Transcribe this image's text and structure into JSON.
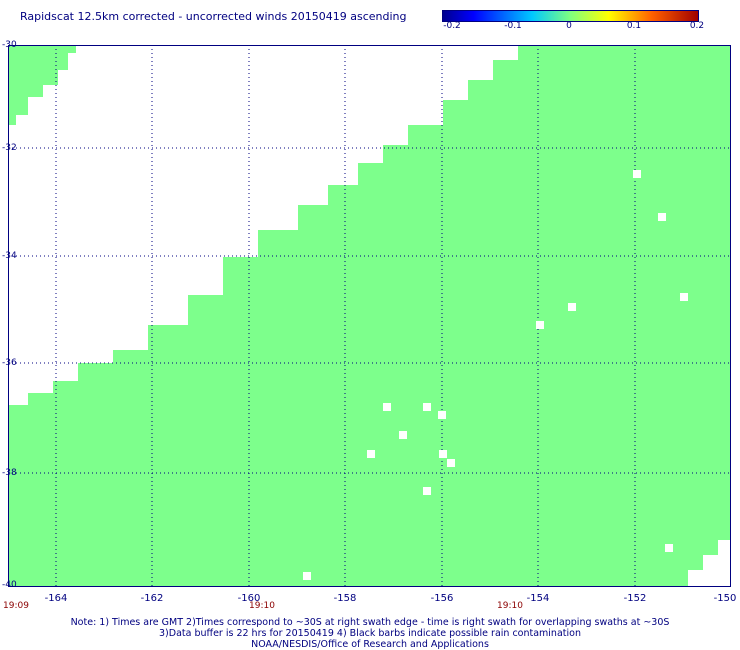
{
  "title": "Rapidscat 12.5km corrected - uncorrected winds 20150419 ascending",
  "colorbar": {
    "ticks": [
      "-0.2",
      "-0.1",
      "0",
      "0.1",
      "0.2"
    ]
  },
  "map": {
    "fill_color": "#7dff8c",
    "lon_range": [
      -165,
      -150
    ],
    "lat_range": [
      -40,
      -30
    ],
    "lon_ticks": [
      "-164",
      "-162",
      "-160",
      "-158",
      "-156",
      "-154",
      "-152",
      "-150"
    ],
    "lat_ticks": [
      "-30",
      "-32",
      "-34",
      "-36",
      "-38",
      "-40"
    ],
    "time_labels": [
      "19:09",
      "19:10",
      "19:10"
    ]
  },
  "notes": [
    "Note: 1) Times are GMT 2)Times correspond to ~30S at right swath edge - time is right swath for overlapping swaths at ~30S",
    "3)Data buffer is 22 hrs for 20150419 4) Black barbs indicate possible rain contamination",
    "NOAA/NESDIS/Office of Research and Applications"
  ]
}
